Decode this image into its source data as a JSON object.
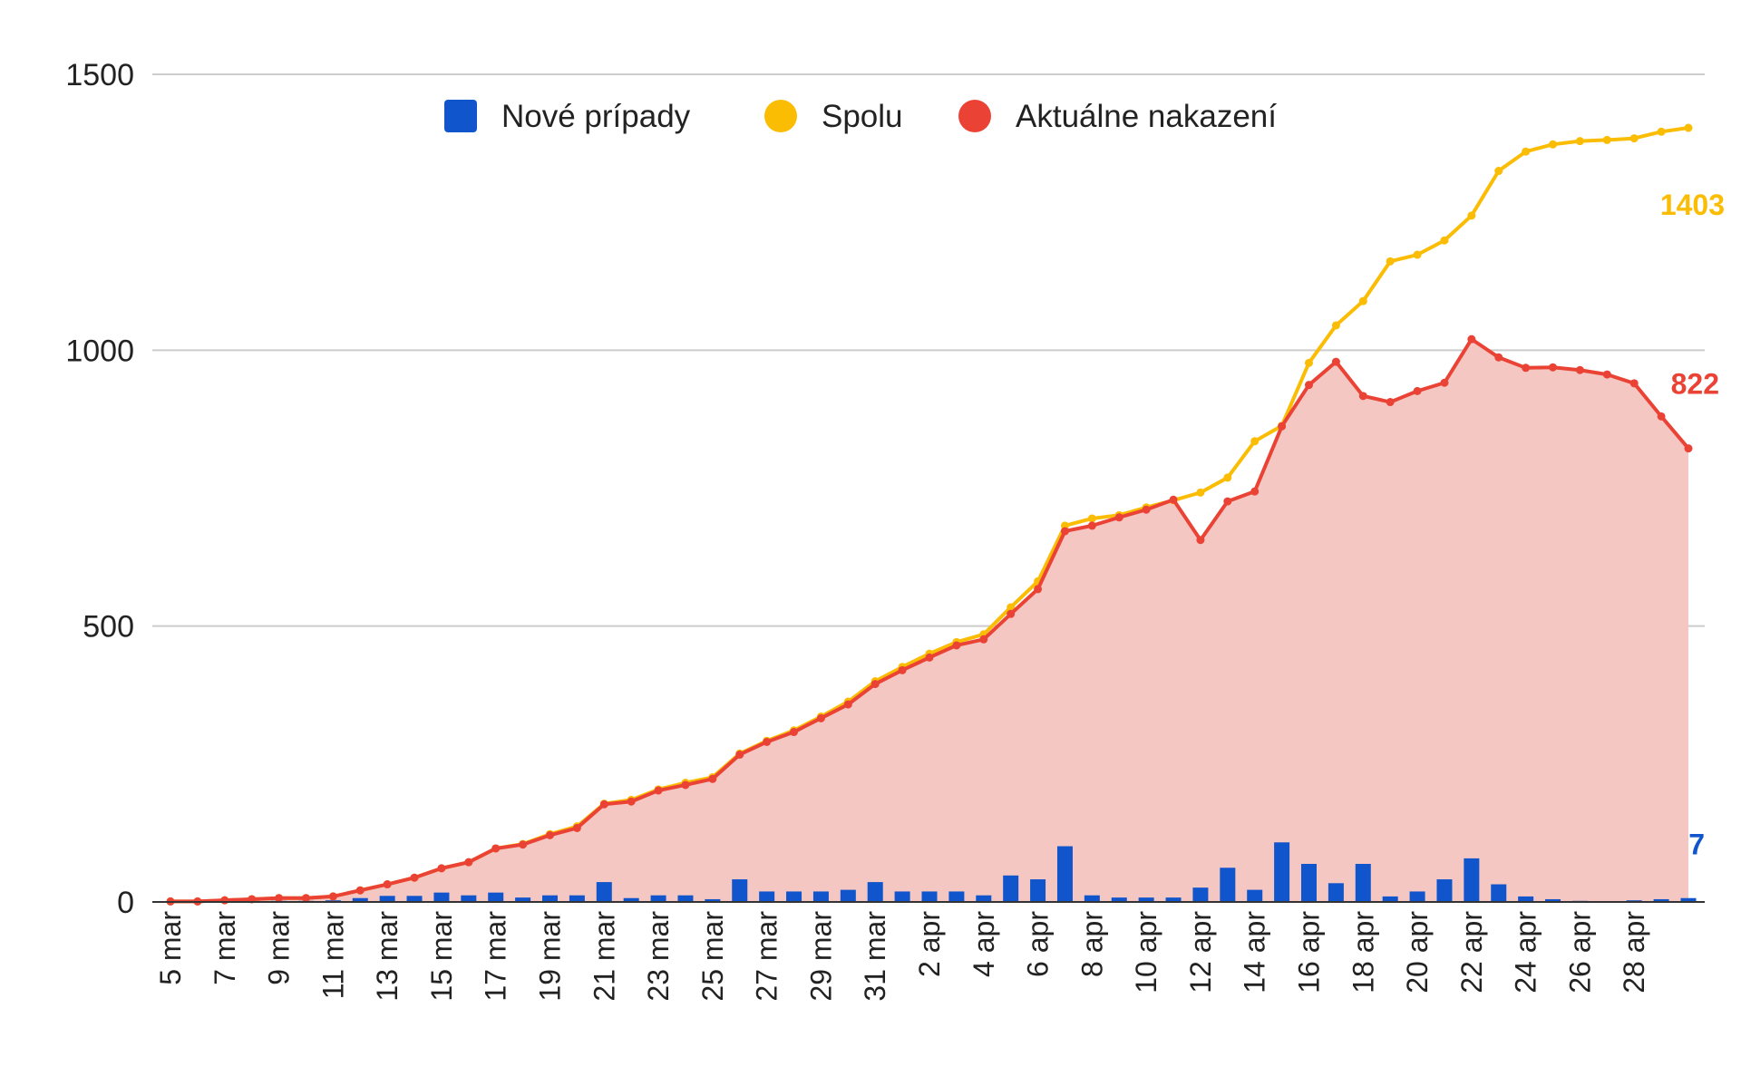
{
  "chart_data": {
    "type": "line",
    "title": "",
    "xlabel": "",
    "ylabel": "",
    "ylim": [
      0,
      1500
    ],
    "yticks": [
      0,
      500,
      1000,
      1500
    ],
    "grid": true,
    "legend_position": "top",
    "x": [
      "5 mar",
      "6 mar",
      "7 mar",
      "8 mar",
      "9 mar",
      "10 mar",
      "11 mar",
      "12 mar",
      "13 mar",
      "14 mar",
      "15 mar",
      "16 mar",
      "17 mar",
      "18 mar",
      "19 mar",
      "20 mar",
      "21 mar",
      "22 mar",
      "23 mar",
      "24 mar",
      "25 mar",
      "26 mar",
      "27 mar",
      "28 mar",
      "29 mar",
      "30 mar",
      "31 mar",
      "1 apr",
      "2 apr",
      "3 apr",
      "4 apr",
      "5 apr",
      "6 apr",
      "7 apr",
      "8 apr",
      "9 apr",
      "10 apr",
      "11 apr",
      "12 apr",
      "13 apr",
      "14 apr",
      "15 apr",
      "16 apr",
      "17 apr",
      "18 apr",
      "19 apr",
      "20 apr",
      "21 apr",
      "22 apr",
      "23 apr",
      "24 apr",
      "25 apr",
      "26 apr",
      "27 apr",
      "28 apr",
      "29 apr",
      "30 apr"
    ],
    "x_tick_labels": [
      "5 mar",
      "",
      "7 mar",
      "",
      "9 mar",
      "",
      "11 mar",
      "",
      "13 mar",
      "",
      "15 mar",
      "",
      "17 mar",
      "",
      "19 mar",
      "",
      "21 mar",
      "",
      "23 mar",
      "",
      "25 mar",
      "",
      "27 mar",
      "",
      "29 mar",
      "",
      "31 mar",
      "",
      "2 apr",
      "",
      "4 apr",
      "",
      "6 apr",
      "",
      "8 apr",
      "",
      "10 apr",
      "",
      "12 apr",
      "",
      "14 apr",
      "",
      "16 apr",
      "",
      "18 apr",
      "",
      "20 apr",
      "",
      "22 apr",
      "",
      "24 apr",
      "",
      "26 apr",
      "",
      "28 apr",
      "",
      ""
    ],
    "series": [
      {
        "name": "Nové prípady",
        "type": "bar",
        "color": "#1155cc",
        "values": [
          1,
          0,
          2,
          2,
          2,
          2,
          3,
          7,
          11,
          11,
          17,
          12,
          17,
          8,
          12,
          12,
          36,
          7,
          12,
          12,
          5,
          41,
          19,
          19,
          19,
          22,
          36,
          19,
          19,
          19,
          12,
          48,
          41,
          101,
          12,
          8,
          8,
          8,
          26,
          62,
          22,
          108,
          69,
          34,
          69,
          10,
          19,
          41,
          79,
          32,
          10,
          5,
          2,
          0,
          3,
          5,
          7
        ],
        "end_label": "7"
      },
      {
        "name": "Spolu",
        "type": "line",
        "color": "#fbbc04",
        "values": [
          1,
          1,
          3,
          5,
          7,
          7,
          10,
          21,
          32,
          44,
          61,
          72,
          97,
          105,
          123,
          137,
          178,
          185,
          204,
          216,
          226,
          269,
          292,
          311,
          336,
          363,
          400,
          426,
          450,
          471,
          485,
          534,
          581,
          682,
          695,
          701,
          715,
          728,
          742,
          769,
          835,
          863,
          977,
          1045,
          1089,
          1161,
          1173,
          1199,
          1244,
          1325,
          1360,
          1373,
          1379,
          1381,
          1384,
          1396,
          1403
        ],
        "end_label": "1403"
      },
      {
        "name": "Aktuálne nakazení",
        "type": "area",
        "color": "#ea4335",
        "values": [
          1,
          1,
          3,
          5,
          7,
          7,
          10,
          21,
          32,
          44,
          61,
          72,
          97,
          104,
          121,
          134,
          177,
          182,
          202,
          212,
          223,
          267,
          290,
          308,
          333,
          358,
          395,
          420,
          443,
          465,
          476,
          522,
          567,
          672,
          682,
          697,
          711,
          729,
          656,
          726,
          744,
          862,
          937,
          979,
          917,
          906,
          926,
          941,
          1020,
          987,
          968,
          969,
          964,
          956,
          940,
          880,
          822
        ],
        "end_label": "822"
      }
    ]
  }
}
